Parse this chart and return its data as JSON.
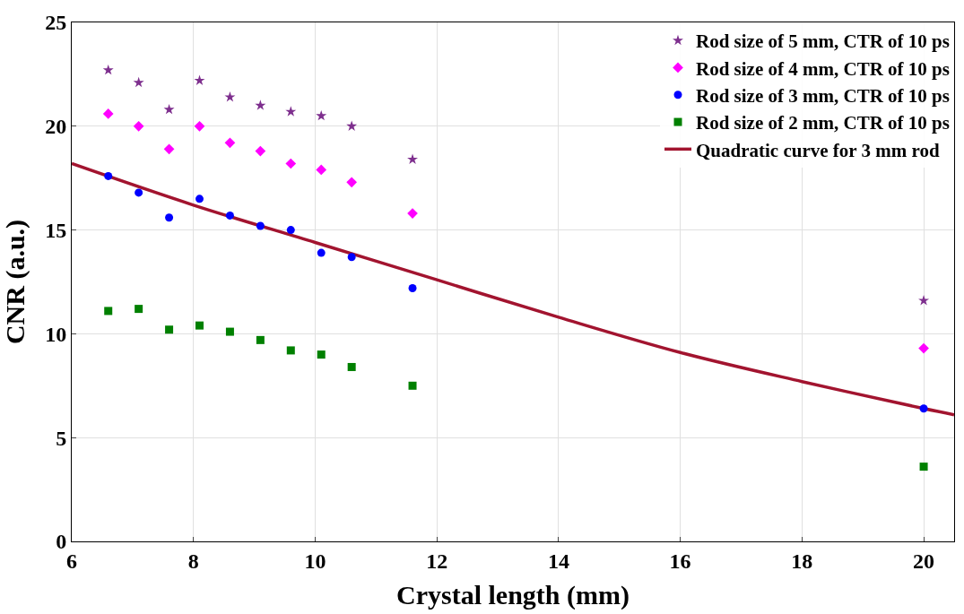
{
  "chart_data": {
    "type": "scatter",
    "xlabel": "Crystal length (mm)",
    "ylabel": "CNR (a.u.)",
    "xlim": [
      6,
      20.5
    ],
    "xticks": [
      6,
      8,
      10,
      12,
      14,
      16,
      18,
      20
    ],
    "ylim": [
      0,
      25
    ],
    "yticks": [
      0,
      5,
      10,
      15,
      20,
      25
    ],
    "grid": true,
    "legend": "top right",
    "x": [
      6.6,
      7.1,
      7.6,
      8.1,
      8.6,
      9.1,
      9.6,
      10.1,
      10.6,
      11.6,
      20
    ],
    "series": [
      {
        "name": "Rod size of 5 mm, CTR of 10 ps",
        "color": "#7e2f8e",
        "marker": "star",
        "values": [
          22.7,
          22.1,
          20.8,
          22.2,
          21.4,
          21.0,
          20.7,
          20.5,
          20.0,
          18.4,
          11.6
        ]
      },
      {
        "name": "Rod size of 4 mm, CTR of 10 ps",
        "color": "#ff00ff",
        "marker": "diamond",
        "values": [
          20.6,
          20.0,
          18.9,
          20.0,
          19.2,
          18.8,
          18.2,
          17.9,
          17.3,
          15.8,
          9.3
        ]
      },
      {
        "name": "Rod size of 3 mm, CTR of 10 ps",
        "color": "#0000ff",
        "marker": "circle",
        "values": [
          17.6,
          16.8,
          15.6,
          16.5,
          15.7,
          15.2,
          15.0,
          13.9,
          13.7,
          12.2,
          6.4
        ]
      },
      {
        "name": "Rod size of 2 mm, CTR of 10 ps",
        "color": "#008000",
        "marker": "square",
        "values": [
          11.1,
          11.2,
          10.2,
          10.4,
          10.1,
          9.7,
          9.2,
          9.0,
          8.4,
          7.5,
          3.6
        ]
      },
      {
        "name": "Quadratic curve for 3 mm rod",
        "color": "#a2142f",
        "type": "line",
        "marker": "none",
        "line_style": "solid",
        "x": [
          6,
          8,
          10,
          12,
          14,
          16,
          18,
          20,
          20.5
        ],
        "values": [
          18.2,
          16.2,
          14.4,
          12.6,
          10.8,
          9.1,
          7.7,
          6.4,
          6.1
        ]
      }
    ]
  }
}
